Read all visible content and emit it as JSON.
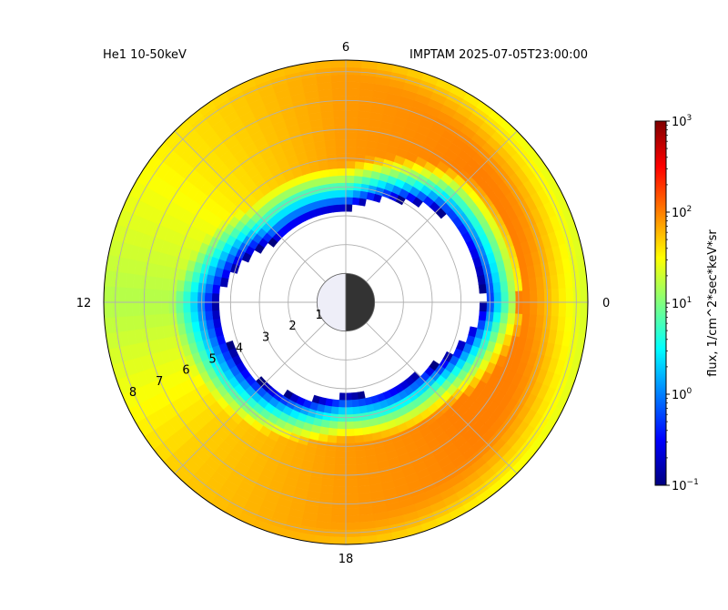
{
  "figure": {
    "title_left": "He1 10-50keV",
    "title_right": "IMPTAM 2025-07-05T23:00:00"
  },
  "chart_data": {
    "type": "heatmap",
    "projection": "polar",
    "title_left": "He1 10-50keV",
    "title_right": "IMPTAM 2025-07-05T23:00:00",
    "angular_ticks": [
      "0",
      "6",
      "12",
      "18"
    ],
    "radial_ticks": [
      "1",
      "2",
      "3",
      "4",
      "5",
      "6",
      "7",
      "8"
    ],
    "rlim": [
      0,
      8.4
    ],
    "grid": true,
    "colorbar": {
      "label": "flux, 1/cm^2*sec*keV*sr",
      "scale": "log",
      "vmin": 0.1,
      "vmax": 1000,
      "tick_labels": [
        {
          "base": "10",
          "exp": "−1"
        },
        {
          "base": "10",
          "exp": "0"
        },
        {
          "base": "10",
          "exp": "1"
        },
        {
          "base": "10",
          "exp": "2"
        },
        {
          "base": "10",
          "exp": "3"
        }
      ],
      "colormap": [
        "#00007f",
        "#0000ff",
        "#007fff",
        "#00ffff",
        "#7fff7f",
        "#ffff00",
        "#ff7f00",
        "#ff0000",
        "#7f0000"
      ]
    },
    "earth": {
      "day_color": "#eeeef8",
      "night_color": "#333333"
    },
    "flux_profile": {
      "mlt": [
        0,
        3,
        6,
        9,
        12,
        15,
        18,
        21
      ],
      "inner_edge_L": [
        4.8,
        4.5,
        3.2,
        3.1,
        4.5,
        4.0,
        3.2,
        3.5
      ],
      "peak_L": [
        6.0,
        6.5,
        7.7,
        8.0,
        8.6,
        8.6,
        7.5,
        6.6
      ],
      "peak_log_flux": [
        2.0,
        2.0,
        1.9,
        1.6,
        1.2,
        1.7,
        1.9,
        2.0
      ]
    }
  }
}
